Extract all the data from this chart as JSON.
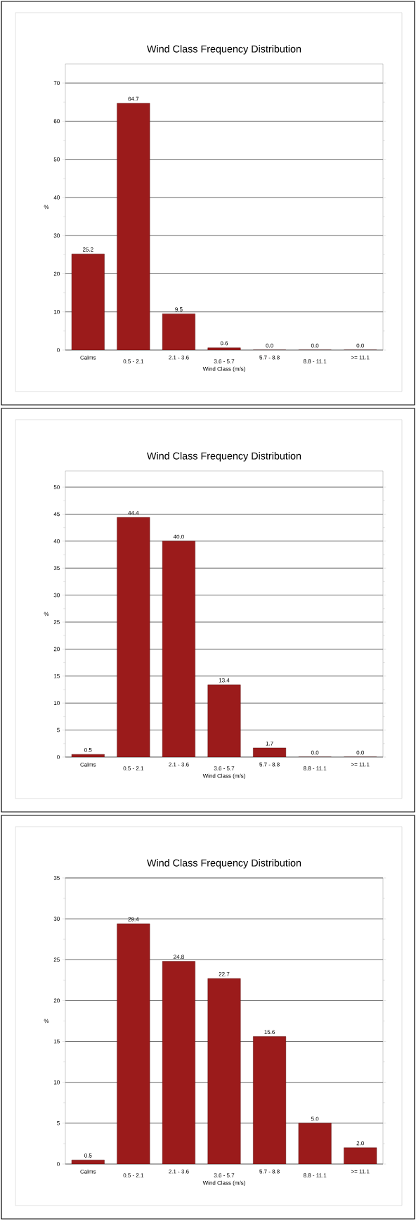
{
  "chart_data": [
    {
      "type": "bar",
      "title": "Wind Class Frequency Distribution",
      "xlabel": "Wind Class (m/s)",
      "ylabel": "%",
      "categories": [
        "Calms",
        "0.5 - 2.1",
        "2.1 - 3.6",
        "3.6 - 5.7",
        "5.7 - 8.8",
        "8.8 - 11.1",
        ">= 11.1"
      ],
      "values": [
        25.2,
        64.7,
        9.5,
        0.6,
        0.0,
        0.0,
        0.0
      ],
      "value_labels": [
        "25.2",
        "64.7",
        "9.5",
        "0.6",
        "0.0",
        "0.0",
        "0.0"
      ],
      "color": "#9b1b1b",
      "ylim": [
        0,
        75
      ],
      "yticks": [
        0,
        10,
        20,
        30,
        40,
        50,
        60,
        70
      ],
      "grid": "y"
    },
    {
      "type": "bar",
      "title": "Wind Class Frequency Distribution",
      "xlabel": "Wind Class (m/s)",
      "ylabel": "%",
      "categories": [
        "Calms",
        "0.5 - 2.1",
        "2.1 - 3.6",
        "3.6 - 5.7",
        "5.7 - 8.8",
        "8.8 - 11.1",
        ">= 11.1"
      ],
      "values": [
        0.5,
        44.4,
        40.0,
        13.4,
        1.7,
        0.0,
        0.0
      ],
      "value_labels": [
        "0.5",
        "44.4",
        "40.0",
        "13.4",
        "1.7",
        "0.0",
        "0.0"
      ],
      "color": "#9b1b1b",
      "ylim": [
        0,
        53
      ],
      "yticks": [
        0,
        5,
        10,
        15,
        20,
        25,
        30,
        35,
        40,
        45,
        50
      ],
      "grid": "y"
    },
    {
      "type": "bar",
      "title": "Wind Class Frequency Distribution",
      "xlabel": "Wind Class (m/s)",
      "ylabel": "%",
      "categories": [
        "Calms",
        "0.5 - 2.1",
        "2.1 - 3.6",
        "3.6 - 5.7",
        "5.7 - 8.8",
        "8.8 - 11.1",
        ">= 11.1"
      ],
      "values": [
        0.5,
        29.4,
        24.8,
        22.7,
        15.6,
        5.0,
        2.0
      ],
      "value_labels": [
        "0.5",
        "29.4",
        "24.8",
        "22.7",
        "15.6",
        "5.0",
        "2.0"
      ],
      "color": "#9b1b1b",
      "ylim": [
        0,
        35
      ],
      "yticks": [
        0,
        5,
        10,
        15,
        20,
        25,
        30,
        35
      ],
      "grid": "y"
    }
  ]
}
